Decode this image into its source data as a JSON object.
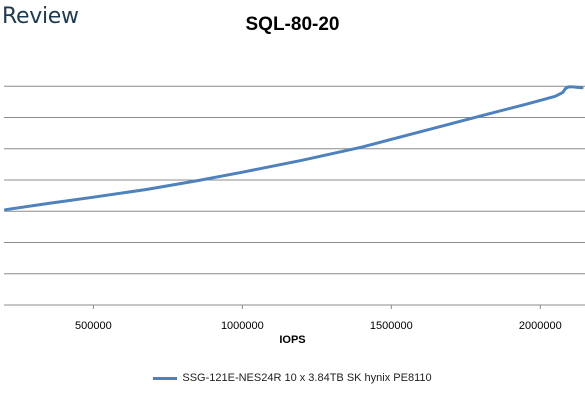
{
  "brand": {
    "text": "Review"
  },
  "chart_data": {
    "type": "line",
    "title": "SQL-80-20",
    "xlabel": "IOPS",
    "ylabel": "",
    "xlim": [
      200000,
      2150000
    ],
    "ylim": [
      0,
      8
    ],
    "xticks": [
      500000,
      1000000,
      1500000,
      2000000
    ],
    "xtick_labels": [
      "500000",
      "1000000",
      "1500000",
      "2000000"
    ],
    "ygrid": [
      1,
      2,
      3,
      4,
      5,
      6,
      7
    ],
    "grid": true,
    "legend_position": "bottom",
    "series": [
      {
        "name": "SSG-121E-NES24R 10 x 3.84TB SK hynix PE8110",
        "color": "#4f81bd",
        "x": [
          205000,
          350000,
          500000,
          680000,
          850000,
          1000000,
          1200000,
          1400000,
          1600000,
          1800000,
          1950000,
          2050000,
          2075000,
          2085000,
          2095000,
          2110000,
          2130000,
          2140000
        ],
        "y": [
          3.05,
          3.25,
          3.45,
          3.7,
          3.98,
          4.25,
          4.63,
          5.05,
          5.55,
          6.05,
          6.42,
          6.68,
          6.8,
          6.93,
          6.98,
          6.98,
          6.96,
          6.95
        ]
      }
    ]
  }
}
